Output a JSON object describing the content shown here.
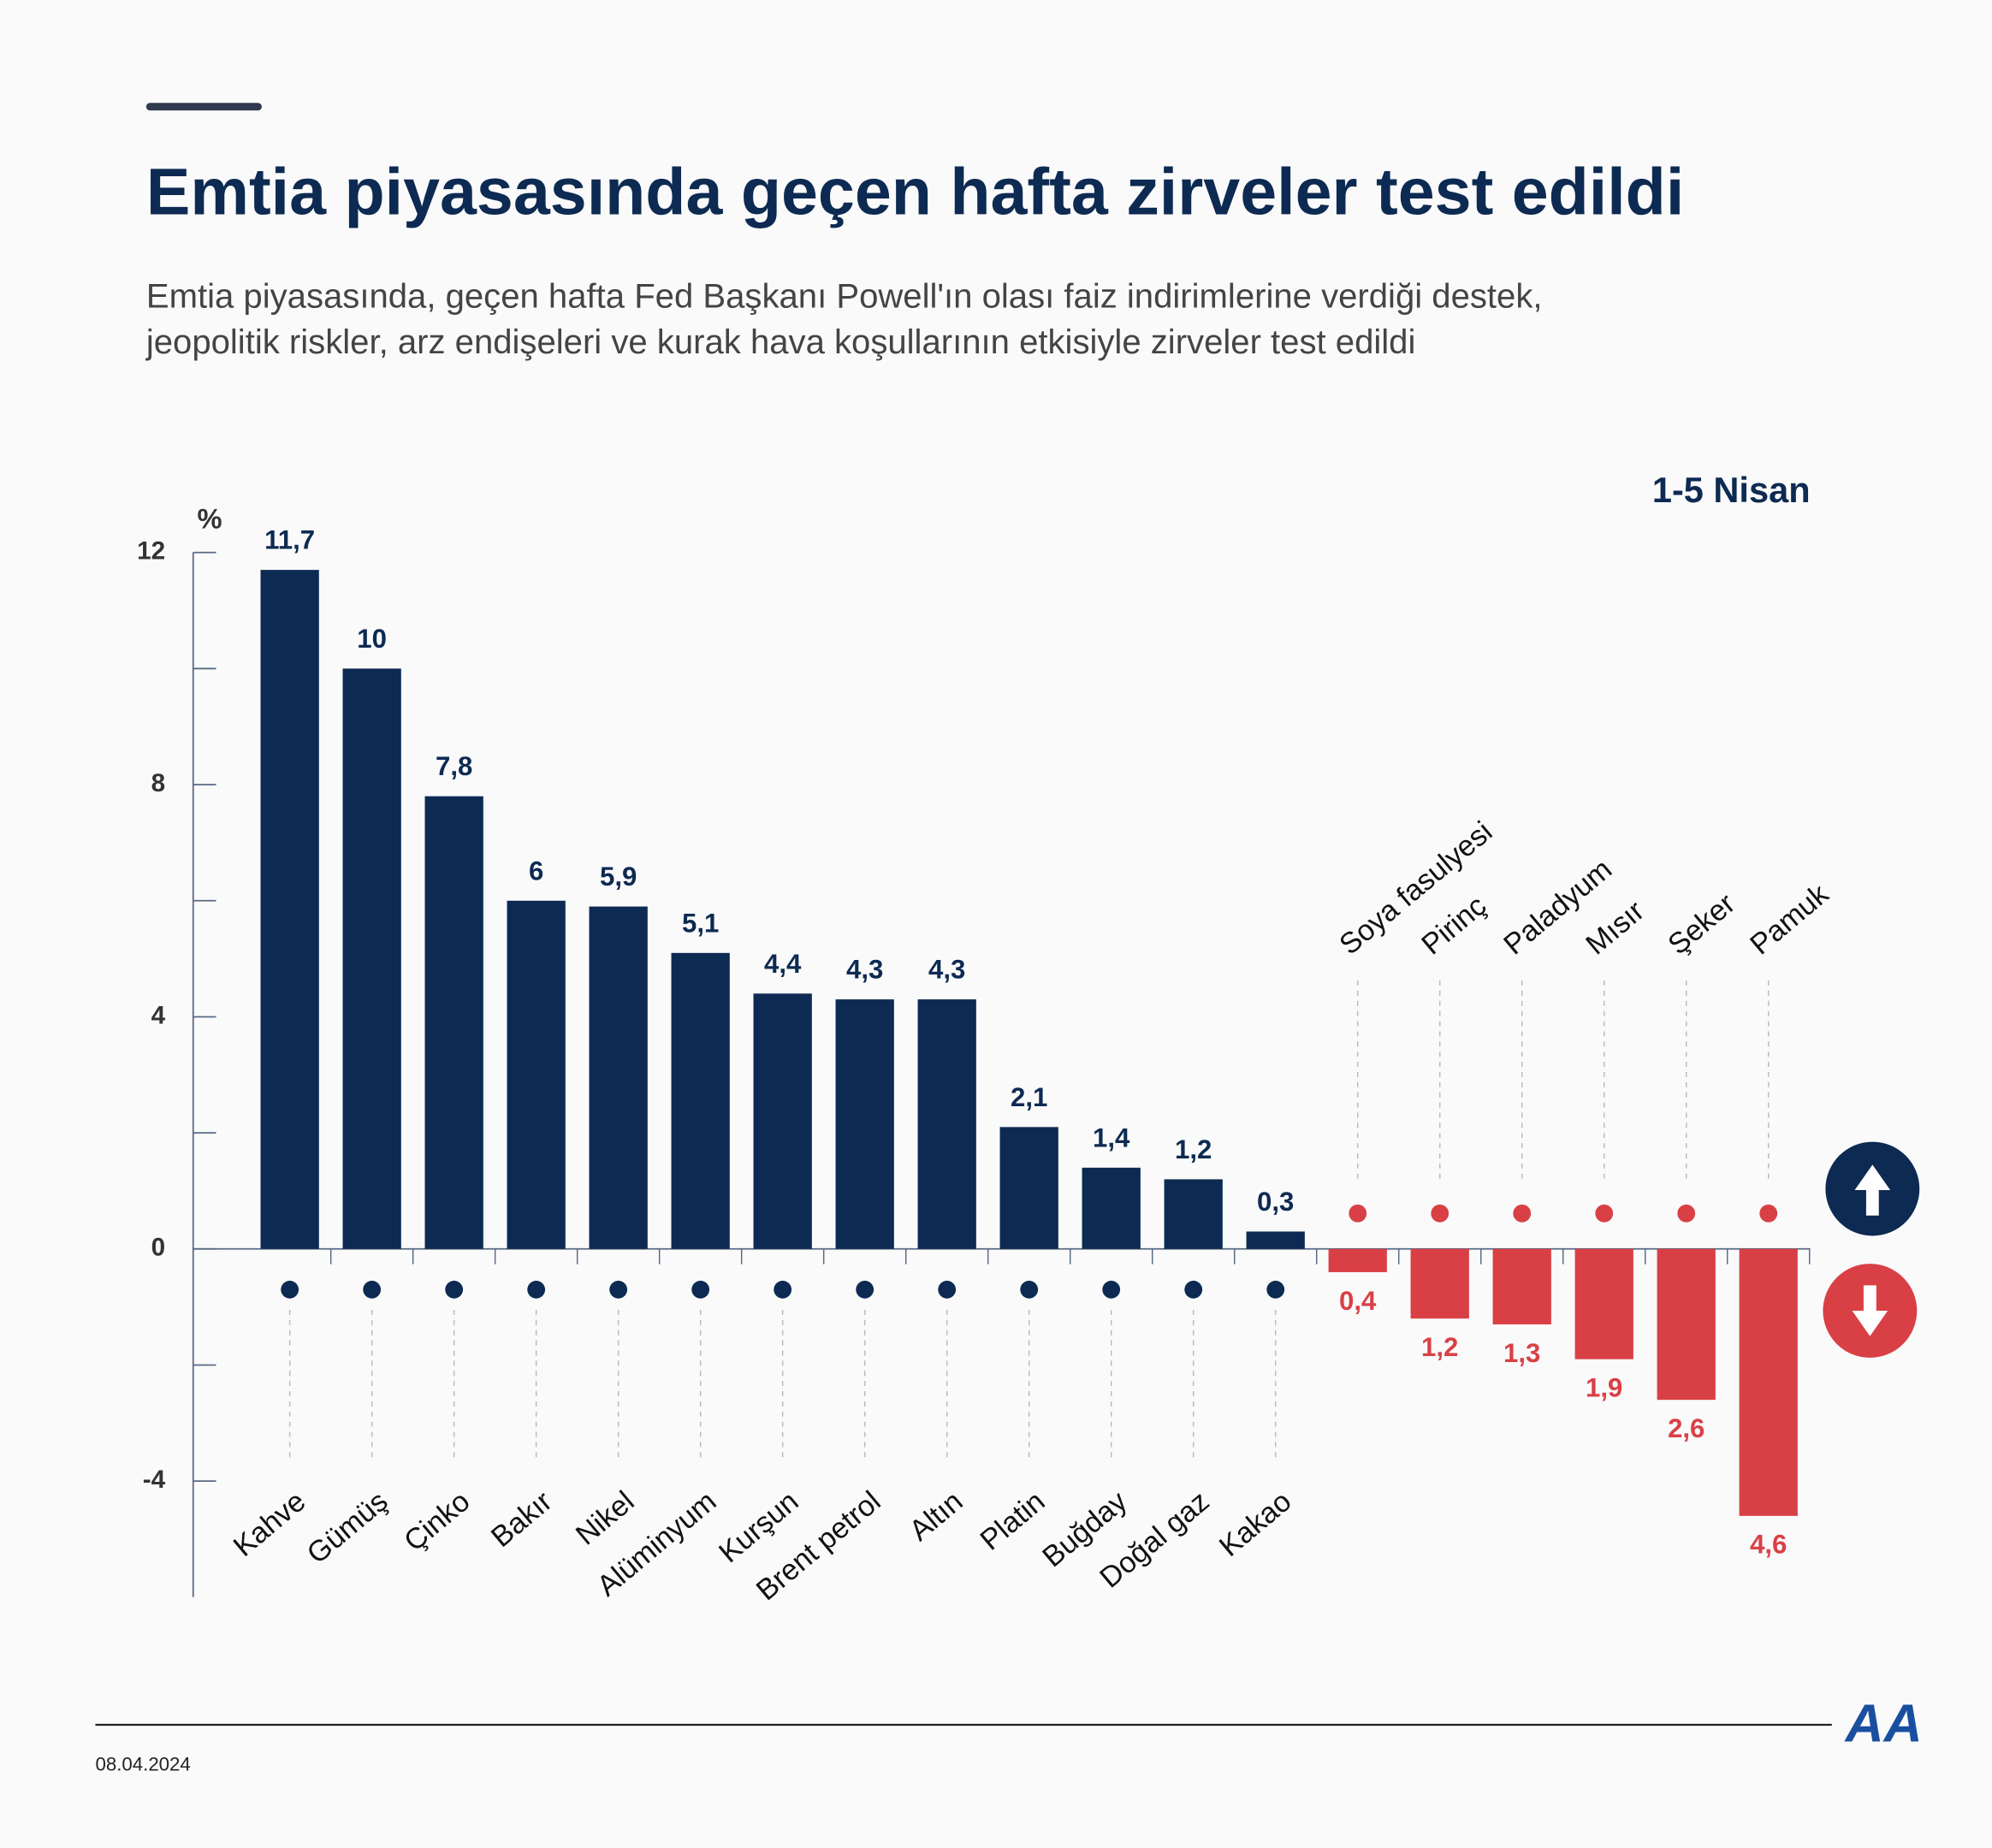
{
  "chart_data": {
    "type": "bar",
    "title": "Emtia piyasasında geçen hafta zirveler test edildi",
    "subtitle": [
      "Emtia piyasasında, geçen hafta Fed Başkanı Powell'ın olası faiz indirimlerine verdiği destek,",
      "jeopolitik riskler, arz endişeleri ve kurak hava koşullarının etkisiyle zirveler test edildi"
    ],
    "period": "1-5 Nisan",
    "y_unit": "%",
    "categories": [
      "Kahve",
      "Gümüş",
      "Çinko",
      "Bakır",
      "Nikel",
      "Alüminyum",
      "Kurşun",
      "Brent petrol",
      "Altın",
      "Platin",
      "Buğday",
      "Doğal gaz",
      "Kakao",
      "Soya fasulyesi",
      "Pirinç",
      "Paladyum",
      "Mısır",
      "Şeker",
      "Pamuk"
    ],
    "values": [
      11.7,
      10,
      7.8,
      6,
      5.9,
      5.1,
      4.4,
      4.3,
      4.3,
      2.1,
      1.4,
      1.2,
      0.3,
      -0.4,
      -1.2,
      -1.3,
      -1.9,
      -2.6,
      -4.6
    ],
    "value_labels": [
      "11,7",
      "10",
      "7,8",
      "6",
      "5,9",
      "5,1",
      "4,4",
      "4,3",
      "4,3",
      "2,1",
      "1,4",
      "1,2",
      "0,3",
      "0,4",
      "1,2",
      "1,3",
      "1,9",
      "2,6",
      "4,6"
    ],
    "positive_color": "#0d2a52",
    "negative_color": "#d94046",
    "ylim": [
      -6,
      12
    ],
    "yticks": [
      -4,
      0,
      4,
      8,
      12
    ],
    "yminor_ticks": [
      -2,
      2,
      6,
      10
    ],
    "date": "08.04.2024",
    "logo": "AA"
  }
}
